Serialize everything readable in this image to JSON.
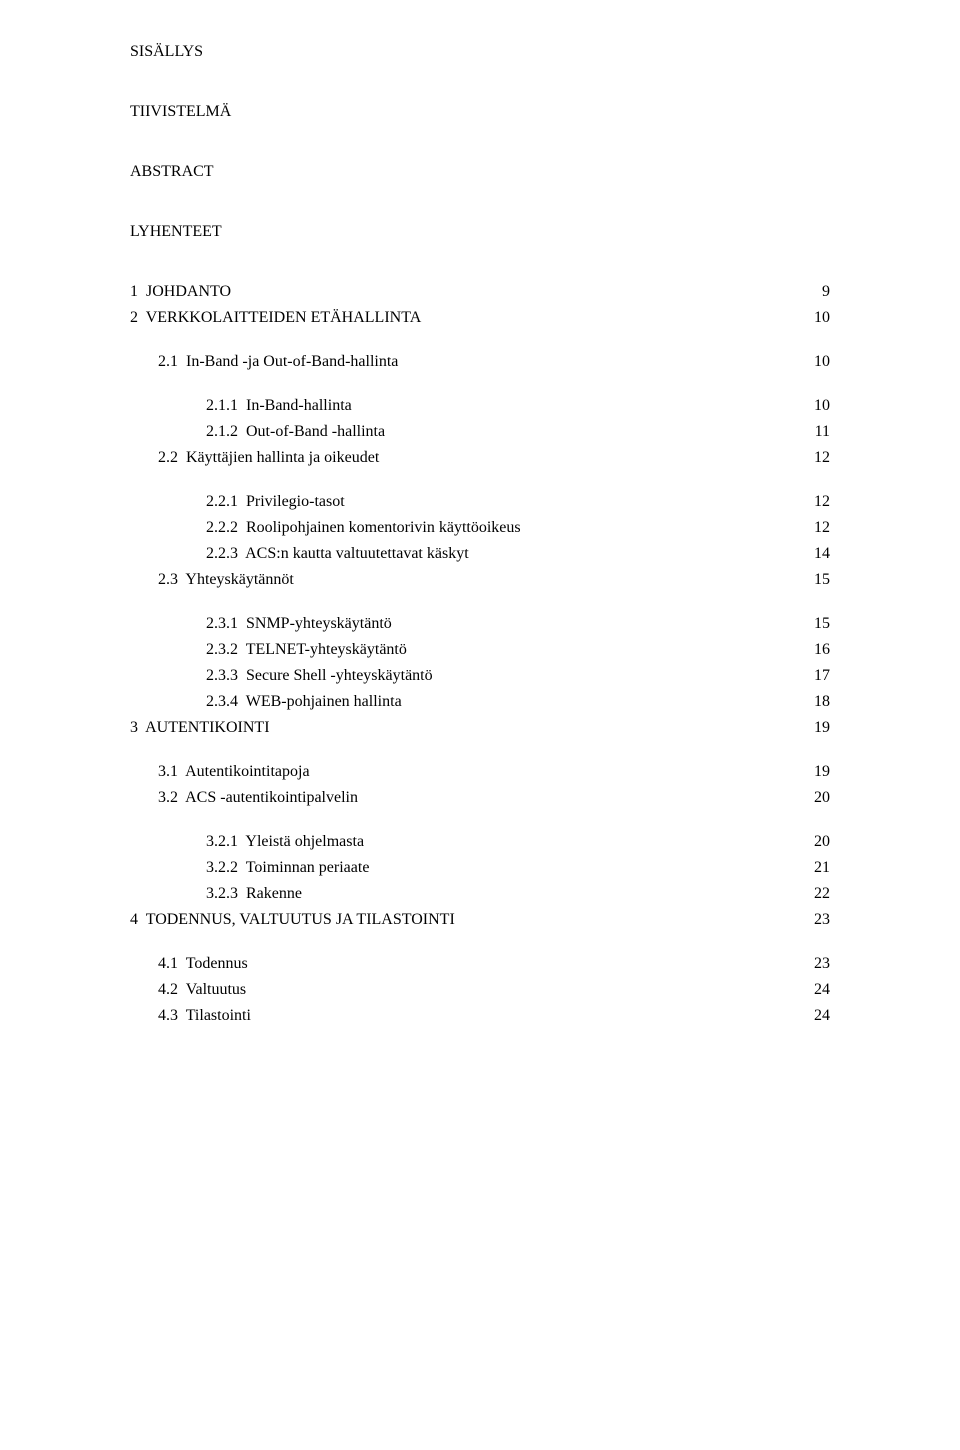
{
  "heading": "SISÄLLYS",
  "front": [
    "TIIVISTELMÄ",
    "ABSTRACT",
    "LYHENTEET"
  ],
  "toc": [
    {
      "indent": 0,
      "label": "1  JOHDANTO",
      "page": "9",
      "gapAfter": false
    },
    {
      "indent": 0,
      "label": "2  VERKKOLAITTEIDEN ETÄHALLINTA",
      "page": "10",
      "gapAfter": true
    },
    {
      "indent": 1,
      "label": "2.1  In-Band -ja Out-of-Band-hallinta",
      "page": "10",
      "gapAfter": true
    },
    {
      "indent": 2,
      "label": "2.1.1  In-Band-hallinta",
      "page": "10",
      "gapAfter": false
    },
    {
      "indent": 2,
      "label": "2.1.2  Out-of-Band -hallinta",
      "page": "11",
      "gapAfter": false
    },
    {
      "indent": 1,
      "label": "2.2  Käyttäjien hallinta ja oikeudet",
      "page": "12",
      "gapAfter": true
    },
    {
      "indent": 2,
      "label": "2.2.1  Privilegio-tasot",
      "page": "12",
      "gapAfter": false
    },
    {
      "indent": 2,
      "label": "2.2.2  Roolipohjainen komentorivin käyttöoikeus",
      "page": "12",
      "gapAfter": false
    },
    {
      "indent": 2,
      "label": "2.2.3  ACS:n kautta valtuutettavat käskyt",
      "page": "14",
      "gapAfter": false
    },
    {
      "indent": 1,
      "label": "2.3  Yhteyskäytännöt",
      "page": "15",
      "gapAfter": true
    },
    {
      "indent": 2,
      "label": "2.3.1  SNMP-yhteyskäytäntö",
      "page": "15",
      "gapAfter": false
    },
    {
      "indent": 2,
      "label": "2.3.2  TELNET-yhteyskäytäntö",
      "page": "16",
      "gapAfter": false
    },
    {
      "indent": 2,
      "label": "2.3.3  Secure Shell -yhteyskäytäntö",
      "page": "17",
      "gapAfter": false
    },
    {
      "indent": 2,
      "label": "2.3.4  WEB-pohjainen hallinta",
      "page": "18",
      "gapAfter": false
    },
    {
      "indent": 0,
      "label": "3  AUTENTIKOINTI",
      "page": "19",
      "gapAfter": true
    },
    {
      "indent": 1,
      "label": "3.1  Autentikointitapoja",
      "page": "19",
      "gapAfter": false
    },
    {
      "indent": 1,
      "label": "3.2  ACS -autentikointipalvelin",
      "page": "20",
      "gapAfter": true
    },
    {
      "indent": 2,
      "label": "3.2.1  Yleistä ohjelmasta",
      "page": "20",
      "gapAfter": false
    },
    {
      "indent": 2,
      "label": "3.2.2  Toiminnan periaate",
      "page": "21",
      "gapAfter": false
    },
    {
      "indent": 2,
      "label": "3.2.3  Rakenne",
      "page": "22",
      "gapAfter": false
    },
    {
      "indent": 0,
      "label": "4  TODENNUS, VALTUUTUS JA TILASTOINTI",
      "page": "23",
      "gapAfter": true
    },
    {
      "indent": 1,
      "label": "4.1  Todennus",
      "page": "23",
      "gapAfter": false
    },
    {
      "indent": 1,
      "label": "4.2  Valtuutus",
      "page": "24",
      "gapAfter": false
    },
    {
      "indent": 1,
      "label": "4.3  Tilastointi",
      "page": "24",
      "gapAfter": false
    }
  ]
}
